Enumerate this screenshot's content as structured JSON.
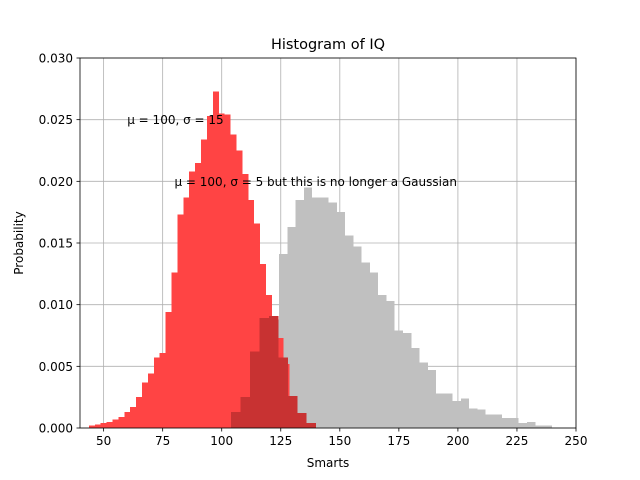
{
  "chart_data": {
    "type": "bar",
    "title": "Histogram of IQ",
    "xlabel": "Smarts",
    "ylabel": "Probability",
    "xlim": [
      40,
      250
    ],
    "ylim": [
      0,
      0.03
    ],
    "xticks": [
      "50",
      "75",
      "100",
      "125",
      "150",
      "175",
      "200",
      "225",
      "250"
    ],
    "yticks": [
      "0.000",
      "0.005",
      "0.010",
      "0.015",
      "0.020",
      "0.025",
      "0.030"
    ],
    "grid": true,
    "annotations": [
      {
        "text": "μ = 100,  σ = 15",
        "x": 60,
        "y": 0.025
      },
      {
        "text": "μ = 100,  σ = 5 but this is no longer a Gaussian",
        "x": 80,
        "y": 0.02
      }
    ],
    "series": [
      {
        "color": "#c0c0c0",
        "bin_width": 3.5,
        "x": [
          105,
          108.5,
          112,
          115.5,
          119,
          122.5,
          126,
          129.5,
          133,
          136.5,
          140,
          143.5,
          147,
          150.5,
          154,
          157.5,
          161,
          164.5,
          168,
          171.5,
          175,
          178.5,
          182,
          185.5,
          189,
          192.5,
          196,
          199.5,
          203,
          206.5,
          210,
          213.5,
          217,
          220.5,
          224,
          227.5,
          231,
          234.5,
          238
        ],
        "values": [
          0.0011,
          0.0013,
          0.002,
          0.0034,
          0.0053,
          0.0088,
          0.0141,
          0.0163,
          0.0185,
          0.0195,
          0.0187,
          0.0187,
          0.0183,
          0.0175,
          0.0156,
          0.0147,
          0.0134,
          0.0126,
          0.0108,
          0.0103,
          0.0079,
          0.0077,
          0.0065,
          0.0053,
          0.0047,
          0.0028,
          0.0028,
          0.0022,
          0.0024,
          0.0016,
          0.0015,
          0.0011,
          0.0011,
          0.0008,
          0.0008,
          0.0004,
          0.0005,
          0.0002,
          0.0002
        ]
      },
      {
        "color": "#ff4444",
        "bin_width": 2.5,
        "x": [
          45,
          47.5,
          50,
          52.5,
          55,
          57.5,
          60,
          62.5,
          65,
          67.5,
          70,
          72.5,
          75,
          77.5,
          80,
          82.5,
          85,
          87.5,
          90,
          92.5,
          95,
          97.5,
          100,
          102.5,
          105,
          107.5,
          110,
          112.5,
          115,
          117.5,
          120,
          122.5,
          125,
          127.5
        ],
        "values": [
          0.0002,
          0.0003,
          0.0004,
          0.0005,
          0.0007,
          0.0009,
          0.0013,
          0.0017,
          0.0025,
          0.0037,
          0.0044,
          0.0057,
          0.0061,
          0.0094,
          0.0126,
          0.0173,
          0.0187,
          0.0208,
          0.0215,
          0.0234,
          0.0253,
          0.0273,
          0.0255,
          0.0254,
          0.0238,
          0.0225,
          0.0206,
          0.0185,
          0.0166,
          0.0133,
          0.0108,
          0.0088,
          0.0073,
          0.0052
        ]
      },
      {
        "color": "#c83232",
        "bin_width": 4,
        "x": [
          106,
          110,
          114,
          118,
          122,
          126,
          130,
          134,
          138
        ],
        "values": [
          0.0013,
          0.0025,
          0.0062,
          0.0089,
          0.0091,
          0.0057,
          0.0026,
          0.0012,
          0.0004
        ]
      }
    ]
  }
}
